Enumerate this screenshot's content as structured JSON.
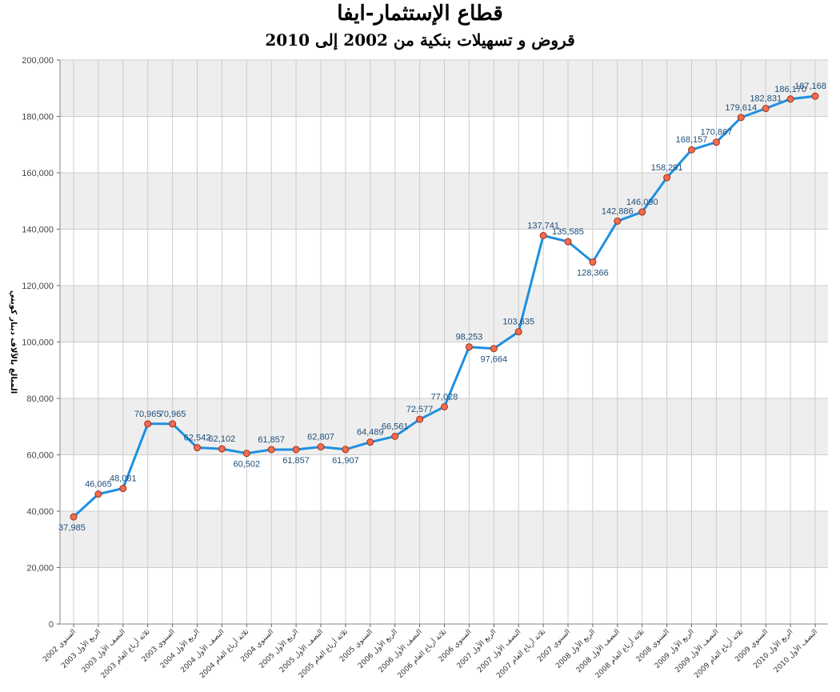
{
  "chart_data": {
    "type": "line",
    "title": "قطاع الإستثمار-ايفا",
    "subtitle": "قروض و تسهيلات بنكية من 2002 إلى 2010",
    "ylabel": "المبالغ بالآلاف دينار كويتي",
    "xlabel": "",
    "ylim": [
      0,
      200000
    ],
    "yticks": [
      "0",
      "20,000",
      "40,000",
      "60,000",
      "80,000",
      "100,000",
      "120,000",
      "140,000",
      "160,000",
      "180,000",
      "200,000"
    ],
    "grid": true,
    "legend": "none",
    "colors": {
      "line": "#1e90e0",
      "marker_fill": "#f26c4f",
      "marker_stroke": "#a0301a",
      "band": "#eeeeee",
      "grid": "#cccccc",
      "label": "#1f4e79"
    },
    "categories": [
      "السنوي 2002",
      "الربع الأول 2003",
      "النصف الأول 2003",
      "ثلاثة أرباع العام 2003",
      "السنوي 2003",
      "الربع الأول 2004",
      "النصف الأول 2004",
      "ثلاثة أرباع العام 2004",
      "السنوي 2004",
      "الربع الأول 2005",
      "النصف الأول 2005",
      "ثلاثة أرباع العام 2005",
      "السنوي 2005",
      "الربع الأول 2006",
      "النصف الأول 2006",
      "ثلاثة أرباع العام 2006",
      "السنوي 2006",
      "الربع الأول 2007",
      "النصف الأول 2007",
      "ثلاثة أرباع العام 2007",
      "السنوي 2007",
      "الربع الأول 2008",
      "النصف الأول 2008",
      "ثلاثة أرباع العام 2008",
      "السنوي 2008",
      "الربع الأول 2009",
      "النصف الأول 2009",
      "ثلاثة أرباع العام 2009",
      "السنوي 2009",
      "الربع الأول 2010",
      "النصف الأول 2010"
    ],
    "values": [
      37985,
      46065,
      48081,
      70965,
      70965,
      62542,
      62102,
      60502,
      61857,
      61857,
      62807,
      61907,
      64489,
      66561,
      72577,
      77028,
      98253,
      97664,
      103635,
      137741,
      135585,
      128366,
      142886,
      146090,
      158291,
      168157,
      170867,
      179614,
      182831,
      186170,
      187168
    ],
    "value_labels": [
      "37,985",
      "46,065",
      "48,081",
      "70,965",
      "70,965",
      "62,542",
      "62,102",
      "60,502",
      "61,857",
      "61,857",
      "62,807",
      "61,907",
      "64,489",
      "66,561",
      "72,577",
      "77,028",
      "98,253",
      "97,664",
      "103,635",
      "137,741",
      "135,585",
      "128,366",
      "142,886",
      "146,090",
      "158,291",
      "168,157",
      "170,867",
      "179,614",
      "182,831",
      "186,170",
      "187,168"
    ]
  }
}
